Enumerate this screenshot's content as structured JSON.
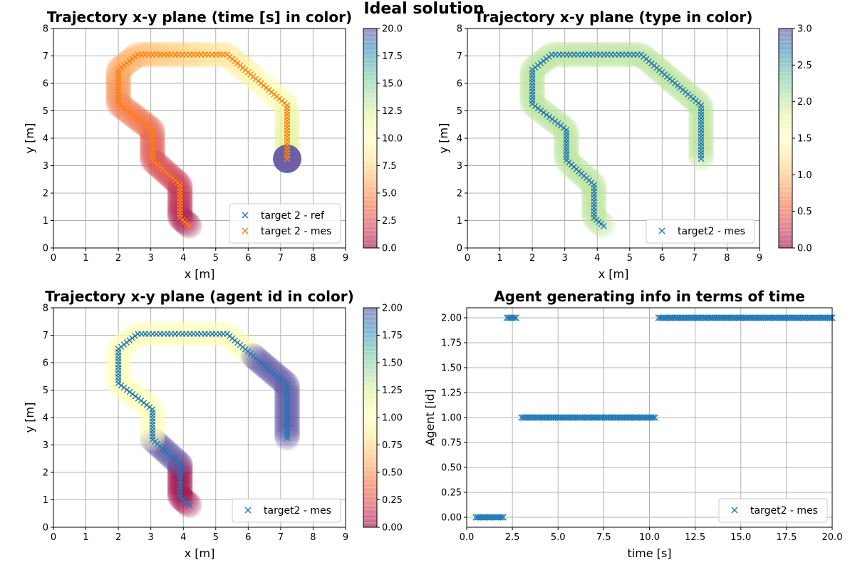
{
  "suptitle": "Ideal solution",
  "colors": {
    "ref": "#1f77b4",
    "mes": "#ff7f0e",
    "grid": "#b0b0b0",
    "spectral": [
      "#9e0142",
      "#d53e4f",
      "#f46d43",
      "#fdae61",
      "#fee08b",
      "#ffffbf",
      "#e6f598",
      "#abdda4",
      "#66c2a5",
      "#3288bd",
      "#5e4fa2"
    ]
  },
  "chart_data": [
    {
      "id": "p1",
      "type": "scatter",
      "title": "Trajectory x-y plane  (time [s] in color)",
      "xlabel": "x [m]",
      "ylabel": "y [m]",
      "xlim": [
        0,
        9
      ],
      "ylim": [
        0,
        8
      ],
      "xticks": [
        0,
        1,
        2,
        3,
        4,
        5,
        6,
        7,
        8,
        9
      ],
      "yticks": [
        0,
        1,
        2,
        3,
        4,
        5,
        6,
        7,
        8
      ],
      "xtick_labels": [
        "0",
        "1",
        "2",
        "3",
        "4",
        "5",
        "6",
        "7",
        "8",
        "9"
      ],
      "ytick_labels": [
        "0",
        "1",
        "2",
        "3",
        "4",
        "5",
        "6",
        "7",
        "8"
      ],
      "grid": true,
      "colorbar": {
        "min": 0,
        "max": 20,
        "ticks": [
          0,
          2.5,
          5,
          7.5,
          10,
          12.5,
          15,
          17.5,
          20
        ],
        "tick_labels": [
          "0.0",
          "2.5",
          "5.0",
          "7.5",
          "10.0",
          "12.5",
          "15.0",
          "17.5",
          "20.0"
        ]
      },
      "halo_color_mode": "time",
      "path_waypoints": [
        [
          4.2,
          0.8
        ],
        [
          3.9,
          1.1
        ],
        [
          3.9,
          2.3
        ],
        [
          3.05,
          3.2
        ],
        [
          3.05,
          4.3
        ],
        [
          2.0,
          5.25
        ],
        [
          2.0,
          6.5
        ],
        [
          2.6,
          7.05
        ],
        [
          5.35,
          7.05
        ],
        [
          7.2,
          5.2
        ],
        [
          7.2,
          3.25
        ]
      ],
      "path_time_end": 20,
      "final_cap": {
        "x": 7.2,
        "y": 3.25,
        "value": 20
      },
      "series": [
        {
          "name": "target 2 - ref",
          "marker": "x",
          "color_key": "ref",
          "show_markers": false
        },
        {
          "name": "target 2 - mes",
          "marker": "x",
          "color_key": "mes",
          "show_markers": true
        }
      ],
      "legend_position": "lower right"
    },
    {
      "id": "p2",
      "type": "scatter",
      "title": "Trajectory x-y plane (type in color)",
      "xlabel": "x [m]",
      "ylabel": "y [m]",
      "xlim": [
        0,
        9
      ],
      "ylim": [
        0,
        8
      ],
      "xticks": [
        0,
        1,
        2,
        3,
        4,
        5,
        6,
        7,
        8,
        9
      ],
      "yticks": [
        0,
        1,
        2,
        3,
        4,
        5,
        6,
        7,
        8
      ],
      "xtick_labels": [
        "0",
        "1",
        "2",
        "3",
        "4",
        "5",
        "6",
        "7",
        "8",
        "9"
      ],
      "ytick_labels": [
        "0",
        "1",
        "2",
        "3",
        "4",
        "5",
        "6",
        "7",
        "8"
      ],
      "grid": true,
      "colorbar": {
        "min": 0,
        "max": 3,
        "ticks": [
          0,
          0.5,
          1,
          1.5,
          2,
          2.5,
          3
        ],
        "tick_labels": [
          "0.0",
          "0.5",
          "1.0",
          "1.5",
          "2.0",
          "2.5",
          "3.0"
        ]
      },
      "halo_color_mode": "constant",
      "halo_value": 2,
      "path_waypoints": [
        [
          4.2,
          0.8
        ],
        [
          3.9,
          1.1
        ],
        [
          3.9,
          2.3
        ],
        [
          3.05,
          3.2
        ],
        [
          3.05,
          4.3
        ],
        [
          2.0,
          5.25
        ],
        [
          2.0,
          6.5
        ],
        [
          2.6,
          7.05
        ],
        [
          5.35,
          7.05
        ],
        [
          7.2,
          5.2
        ],
        [
          7.2,
          3.25
        ]
      ],
      "series": [
        {
          "name": "target2 - mes",
          "marker": "x",
          "color_key": "ref",
          "show_markers": true
        }
      ],
      "legend_position": "lower right"
    },
    {
      "id": "p3",
      "type": "scatter",
      "title": "Trajectory x-y plane (agent id in color)",
      "xlabel": "x [m]",
      "ylabel": "y [m]",
      "xlim": [
        0,
        9
      ],
      "ylim": [
        0,
        8
      ],
      "xticks": [
        0,
        1,
        2,
        3,
        4,
        5,
        6,
        7,
        8,
        9
      ],
      "yticks": [
        0,
        1,
        2,
        3,
        4,
        5,
        6,
        7,
        8
      ],
      "xtick_labels": [
        "0",
        "1",
        "2",
        "3",
        "4",
        "5",
        "6",
        "7",
        "8",
        "9"
      ],
      "ytick_labels": [
        "0",
        "1",
        "2",
        "3",
        "4",
        "5",
        "6",
        "7",
        "8"
      ],
      "grid": true,
      "colorbar": {
        "min": 0,
        "max": 2,
        "ticks": [
          0,
          0.25,
          0.5,
          0.75,
          1,
          1.25,
          1.5,
          1.75,
          2
        ],
        "tick_labels": [
          "0.00",
          "0.25",
          "0.50",
          "0.75",
          "1.00",
          "1.25",
          "1.50",
          "1.75",
          "2.00"
        ]
      },
      "halo_color_mode": "segments",
      "halo_segments": [
        {
          "value": 0,
          "points": [
            [
              4.2,
              0.8
            ],
            [
              3.9,
              1.1
            ],
            [
              3.9,
              2.3
            ]
          ]
        },
        {
          "value": 2,
          "points": [
            [
              3.9,
              2.3
            ],
            [
              3.05,
              3.2
            ]
          ]
        },
        {
          "value": 1,
          "points": [
            [
              3.05,
              3.2
            ],
            [
              3.05,
              4.3
            ],
            [
              2.0,
              5.25
            ],
            [
              2.0,
              6.5
            ],
            [
              2.6,
              7.05
            ],
            [
              5.35,
              7.05
            ],
            [
              6.15,
              6.25
            ]
          ]
        },
        {
          "value": 2,
          "points": [
            [
              6.15,
              6.25
            ],
            [
              7.2,
              5.2
            ],
            [
              7.2,
              3.25
            ]
          ]
        }
      ],
      "path_waypoints": [
        [
          4.2,
          0.8
        ],
        [
          3.9,
          1.1
        ],
        [
          3.9,
          2.3
        ],
        [
          3.05,
          3.2
        ],
        [
          3.05,
          4.3
        ],
        [
          2.0,
          5.25
        ],
        [
          2.0,
          6.5
        ],
        [
          2.6,
          7.05
        ],
        [
          5.35,
          7.05
        ],
        [
          7.2,
          5.2
        ],
        [
          7.2,
          3.25
        ]
      ],
      "series": [
        {
          "name": "target2 - mes",
          "marker": "x",
          "color_key": "ref",
          "show_markers": true
        }
      ],
      "legend_position": "lower right"
    },
    {
      "id": "p4",
      "type": "scatter",
      "title": "Agent generating info in terms of time",
      "xlabel": "time [s]",
      "ylabel": "Agent [id]",
      "xlim": [
        0,
        20
      ],
      "ylim": [
        -0.1,
        2.1
      ],
      "xticks": [
        0,
        2.5,
        5,
        7.5,
        10,
        12.5,
        15,
        17.5,
        20
      ],
      "yticks": [
        0,
        0.25,
        0.5,
        0.75,
        1,
        1.25,
        1.5,
        1.75,
        2
      ],
      "xtick_labels": [
        "0.0",
        "2.5",
        "5.0",
        "7.5",
        "10.0",
        "12.5",
        "15.0",
        "17.5",
        "20.0"
      ],
      "ytick_labels": [
        "0.00",
        "0.25",
        "0.50",
        "0.75",
        "1.00",
        "1.25",
        "1.50",
        "1.75",
        "2.00"
      ],
      "grid": true,
      "runs": [
        {
          "agent": 0,
          "t_start": 0.5,
          "t_end": 2.0,
          "step": 0.1
        },
        {
          "agent": 2,
          "t_start": 2.2,
          "t_end": 2.7,
          "step": 0.1
        },
        {
          "agent": 1,
          "t_start": 3.0,
          "t_end": 10.3,
          "step": 0.1
        },
        {
          "agent": 2,
          "t_start": 10.5,
          "t_end": 20.0,
          "step": 0.1
        }
      ],
      "series": [
        {
          "name": "target2 - mes",
          "marker": "x",
          "color_key": "ref",
          "show_markers": true
        }
      ],
      "legend_position": "lower right"
    }
  ]
}
